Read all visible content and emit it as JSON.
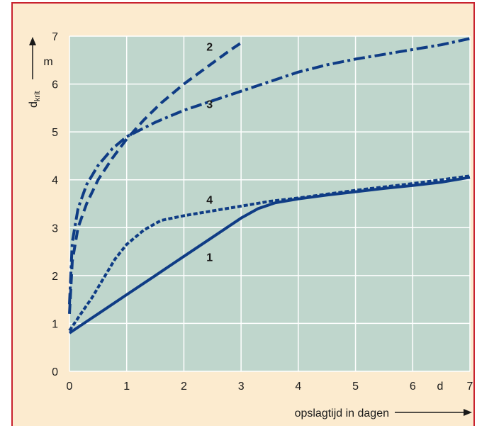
{
  "colors": {
    "frame_border": "#c8222e",
    "background": "#fcebcf",
    "plot_area": "#bfd6cc",
    "grid": "#ffffff",
    "series": "#0f3c85"
  },
  "chart_data": {
    "type": "line",
    "title": "",
    "xlabel": "opslagtijd in dagen",
    "xunit": "d",
    "ylabel_main": "d",
    "ylabel_sub": "krit",
    "yunit": "m",
    "xlim": [
      0,
      7
    ],
    "ylim": [
      0,
      7
    ],
    "xticks": [
      "0",
      "1",
      "2",
      "3",
      "4",
      "5",
      "6",
      "7"
    ],
    "yticks": [
      "0",
      "1",
      "2",
      "3",
      "4",
      "5",
      "6",
      "7"
    ],
    "grid": true,
    "series": [
      {
        "name": "1",
        "style": "solid",
        "x": [
          0,
          0.5,
          1,
          1.5,
          2,
          2.5,
          3,
          3.3,
          3.6,
          4,
          4.5,
          5,
          5.5,
          6,
          6.5,
          7
        ],
        "y": [
          0.8,
          1.2,
          1.6,
          2.0,
          2.4,
          2.8,
          3.2,
          3.4,
          3.52,
          3.6,
          3.68,
          3.75,
          3.82,
          3.88,
          3.95,
          4.05
        ]
      },
      {
        "name": "2",
        "style": "dashed",
        "x": [
          0,
          0.05,
          0.15,
          0.3,
          0.5,
          0.75,
          1,
          1.3,
          1.6,
          2,
          2.4,
          2.8,
          3.05
        ],
        "y": [
          1.2,
          2.3,
          3.0,
          3.5,
          4.0,
          4.45,
          4.85,
          5.25,
          5.6,
          6.0,
          6.35,
          6.7,
          6.9
        ]
      },
      {
        "name": "3",
        "style": "dash-dot",
        "x": [
          0,
          0.05,
          0.15,
          0.3,
          0.5,
          0.75,
          1,
          1.5,
          2,
          2.5,
          3,
          3.5,
          4,
          4.5,
          5,
          5.5,
          6,
          6.5,
          7
        ],
        "y": [
          1.4,
          2.7,
          3.4,
          3.9,
          4.3,
          4.65,
          4.9,
          5.2,
          5.45,
          5.65,
          5.85,
          6.05,
          6.25,
          6.4,
          6.52,
          6.62,
          6.72,
          6.82,
          6.95
        ]
      },
      {
        "name": "4",
        "style": "dotted",
        "x": [
          0,
          0.2,
          0.4,
          0.6,
          0.8,
          1,
          1.3,
          1.6,
          2,
          2.5,
          3,
          3.5,
          4,
          4.5,
          5,
          5.5,
          6,
          6.5,
          7
        ],
        "y": [
          0.85,
          1.2,
          1.55,
          1.95,
          2.35,
          2.65,
          2.95,
          3.15,
          3.25,
          3.35,
          3.45,
          3.55,
          3.62,
          3.7,
          3.78,
          3.85,
          3.92,
          4.0,
          4.08
        ]
      }
    ],
    "series_labels": [
      {
        "text": "1",
        "x": 2.45,
        "y": 2.3
      },
      {
        "text": "2",
        "x": 2.45,
        "y": 6.7
      },
      {
        "text": "3",
        "x": 2.45,
        "y": 5.5
      },
      {
        "text": "4",
        "x": 2.45,
        "y": 3.5
      }
    ]
  }
}
